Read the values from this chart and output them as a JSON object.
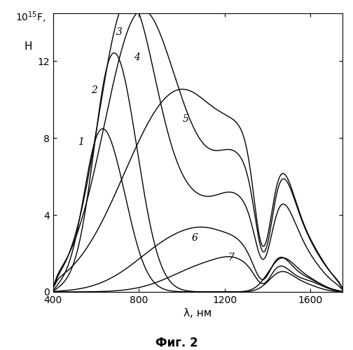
{
  "xlabel": "λ, нм",
  "caption": "Фиг. 2",
  "xlim": [
    400,
    1750
  ],
  "ylim": [
    0,
    14.5
  ],
  "yticks": [
    0,
    4,
    8,
    12
  ],
  "xticks": [
    400,
    800,
    1200,
    1600
  ],
  "figsize": [
    5.04,
    5.0
  ],
  "dpi": 100,
  "label_positions": [
    [
      530,
      7.8,
      "1"
    ],
    [
      590,
      10.5,
      "2"
    ],
    [
      710,
      13.5,
      "3"
    ],
    [
      790,
      12.2,
      "4"
    ],
    [
      1020,
      9.0,
      "5"
    ],
    [
      1060,
      2.8,
      "6"
    ],
    [
      1230,
      1.8,
      "7"
    ]
  ]
}
